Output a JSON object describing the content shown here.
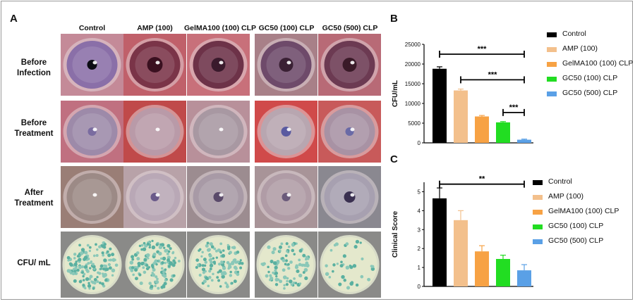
{
  "panel_a": {
    "letter": "A",
    "columns": [
      "Control",
      "AMP (100)",
      "GelMA100 (100) CLP",
      "GC50 (100) CLP",
      "GC50 (500) CLP"
    ],
    "rows": [
      {
        "line1": "Before",
        "line2": "Infection"
      },
      {
        "line1": "Before",
        "line2": "Treatment"
      },
      {
        "line1": "After",
        "line2": "Treatment"
      },
      {
        "line1": "CFU/ mL",
        "line2": ""
      }
    ]
  },
  "series_colors": [
    "#000000",
    "#f3c08c",
    "#f7a244",
    "#22dd22",
    "#5aa0e6"
  ],
  "chart_data": [
    {
      "panel": "B",
      "type": "bar",
      "ylabel": "CFU/mL",
      "ylim": [
        0,
        25000
      ],
      "yticks": [
        "0",
        "5000",
        "10000",
        "15000",
        "20000",
        "25000"
      ],
      "tick_values": [
        0,
        5000,
        10000,
        15000,
        20000,
        25000
      ],
      "categories": [
        "Control",
        "AMP (100)",
        "GelMA100 (100) CLP",
        "GC50 (100) CLP",
        "GC50 (500) CLP"
      ],
      "values": [
        18800,
        13300,
        6700,
        5200,
        800
      ],
      "errors": [
        500,
        350,
        250,
        200,
        150
      ],
      "significance": [
        {
          "from": 0,
          "to": 4,
          "label": "***",
          "y": 22500
        },
        {
          "from": 1,
          "to": 4,
          "label": "***",
          "y": 16000
        },
        {
          "from": 3,
          "to": 4,
          "label": "***",
          "y": 7700
        }
      ],
      "legend": [
        "Control",
        "AMP (100)",
        "GelMA100 (100) CLP",
        "GC50 (100) CLP",
        "GC50 (500) CLP"
      ]
    },
    {
      "panel": "C",
      "type": "bar",
      "ylabel": "Clinical Score",
      "ylim": [
        0,
        5.5
      ],
      "yticks": [
        "0",
        "1",
        "2",
        "3",
        "4",
        "5"
      ],
      "tick_values": [
        0,
        1,
        2,
        3,
        4,
        5
      ],
      "categories": [
        "Control",
        "AMP (100)",
        "GelMA100 (100) CLP",
        "GC50 (100) CLP",
        "GC50 (500) CLP"
      ],
      "values": [
        4.65,
        3.5,
        1.85,
        1.45,
        0.85
      ],
      "errors": [
        0.55,
        0.5,
        0.3,
        0.2,
        0.3
      ],
      "significance": [
        {
          "from": 0,
          "to": 4,
          "label": "**",
          "y": 5.4
        }
      ],
      "legend": [
        "Control",
        "AMP (100)",
        "GelMA100 (100) CLP",
        "GC50 (100) CLP",
        "GC50 (500) CLP"
      ]
    }
  ]
}
